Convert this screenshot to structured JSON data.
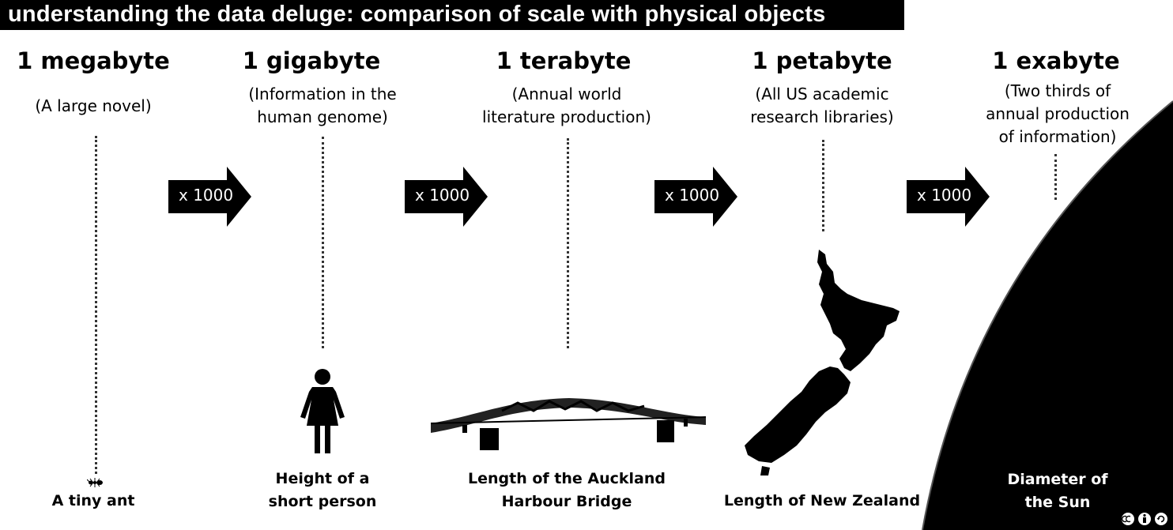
{
  "title": "understanding the data deluge: comparison of scale with physical objects",
  "multiplier_label": "x 1000",
  "columns": [
    {
      "unit": "1 megabyte",
      "description": [
        "(A large novel)"
      ],
      "caption": [
        "A tiny ant"
      ],
      "object_icon": "ant-icon"
    },
    {
      "unit": "1 gigabyte",
      "description": [
        "(Information in the",
        "human genome)"
      ],
      "caption": [
        "Height of a",
        "short person"
      ],
      "object_icon": "person-icon"
    },
    {
      "unit": "1 terabyte",
      "description": [
        "(Annual world",
        "literature production)"
      ],
      "caption": [
        "Length of the Auckland",
        "Harbour Bridge"
      ],
      "object_icon": "bridge-icon"
    },
    {
      "unit": "1 petabyte",
      "description": [
        "(All US academic",
        "research libraries)"
      ],
      "caption": [
        "Length of New Zealand"
      ],
      "object_icon": "new-zealand-map-icon"
    },
    {
      "unit": "1 exabyte",
      "description": [
        "(Two thirds of",
        "annual production",
        "of information)"
      ],
      "caption": [
        "Diameter of",
        "the Sun"
      ],
      "object_icon": "sun-icon"
    }
  ],
  "license_icon": "creative-commons-by-sa-icon"
}
